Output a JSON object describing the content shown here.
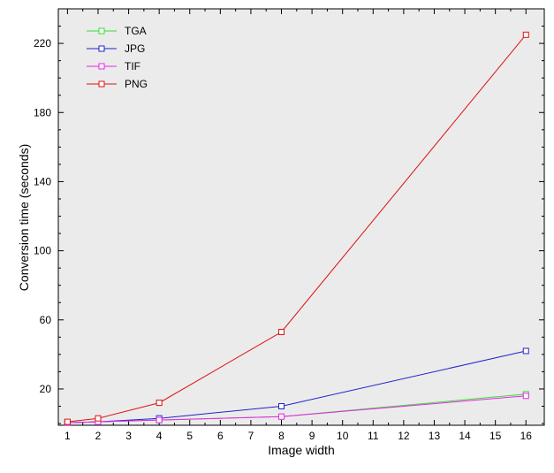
{
  "chart_data": {
    "type": "line",
    "title": "",
    "xlabel": "Image width",
    "ylabel": "Conversion time (seconds)",
    "x_ticks": [
      1,
      2,
      3,
      4,
      5,
      6,
      7,
      8,
      9,
      10,
      11,
      12,
      13,
      14,
      15,
      16
    ],
    "y_ticks": [
      20,
      60,
      100,
      140,
      180,
      220
    ],
    "xlim": [
      0.7,
      16.6
    ],
    "ylim": [
      -1,
      240
    ],
    "grid": false,
    "legend_position": "top-left",
    "plot_background": "#ebebeb",
    "series": [
      {
        "name": "TGA",
        "color": "#33dd33",
        "x": [
          1,
          2,
          4,
          8,
          16
        ],
        "y": [
          0.5,
          1,
          2,
          4,
          17
        ]
      },
      {
        "name": "JPG",
        "color": "#2222cc",
        "x": [
          1,
          2,
          4,
          8,
          16
        ],
        "y": [
          0.5,
          1,
          3,
          10,
          42
        ]
      },
      {
        "name": "TIF",
        "color": "#ee22ee",
        "x": [
          1,
          2,
          4,
          8,
          16
        ],
        "y": [
          0.5,
          1,
          2,
          4,
          16
        ]
      },
      {
        "name": "PNG",
        "color": "#dd1111",
        "x": [
          1,
          2,
          4,
          8,
          16
        ],
        "y": [
          1,
          3,
          12,
          53,
          225
        ]
      }
    ]
  }
}
